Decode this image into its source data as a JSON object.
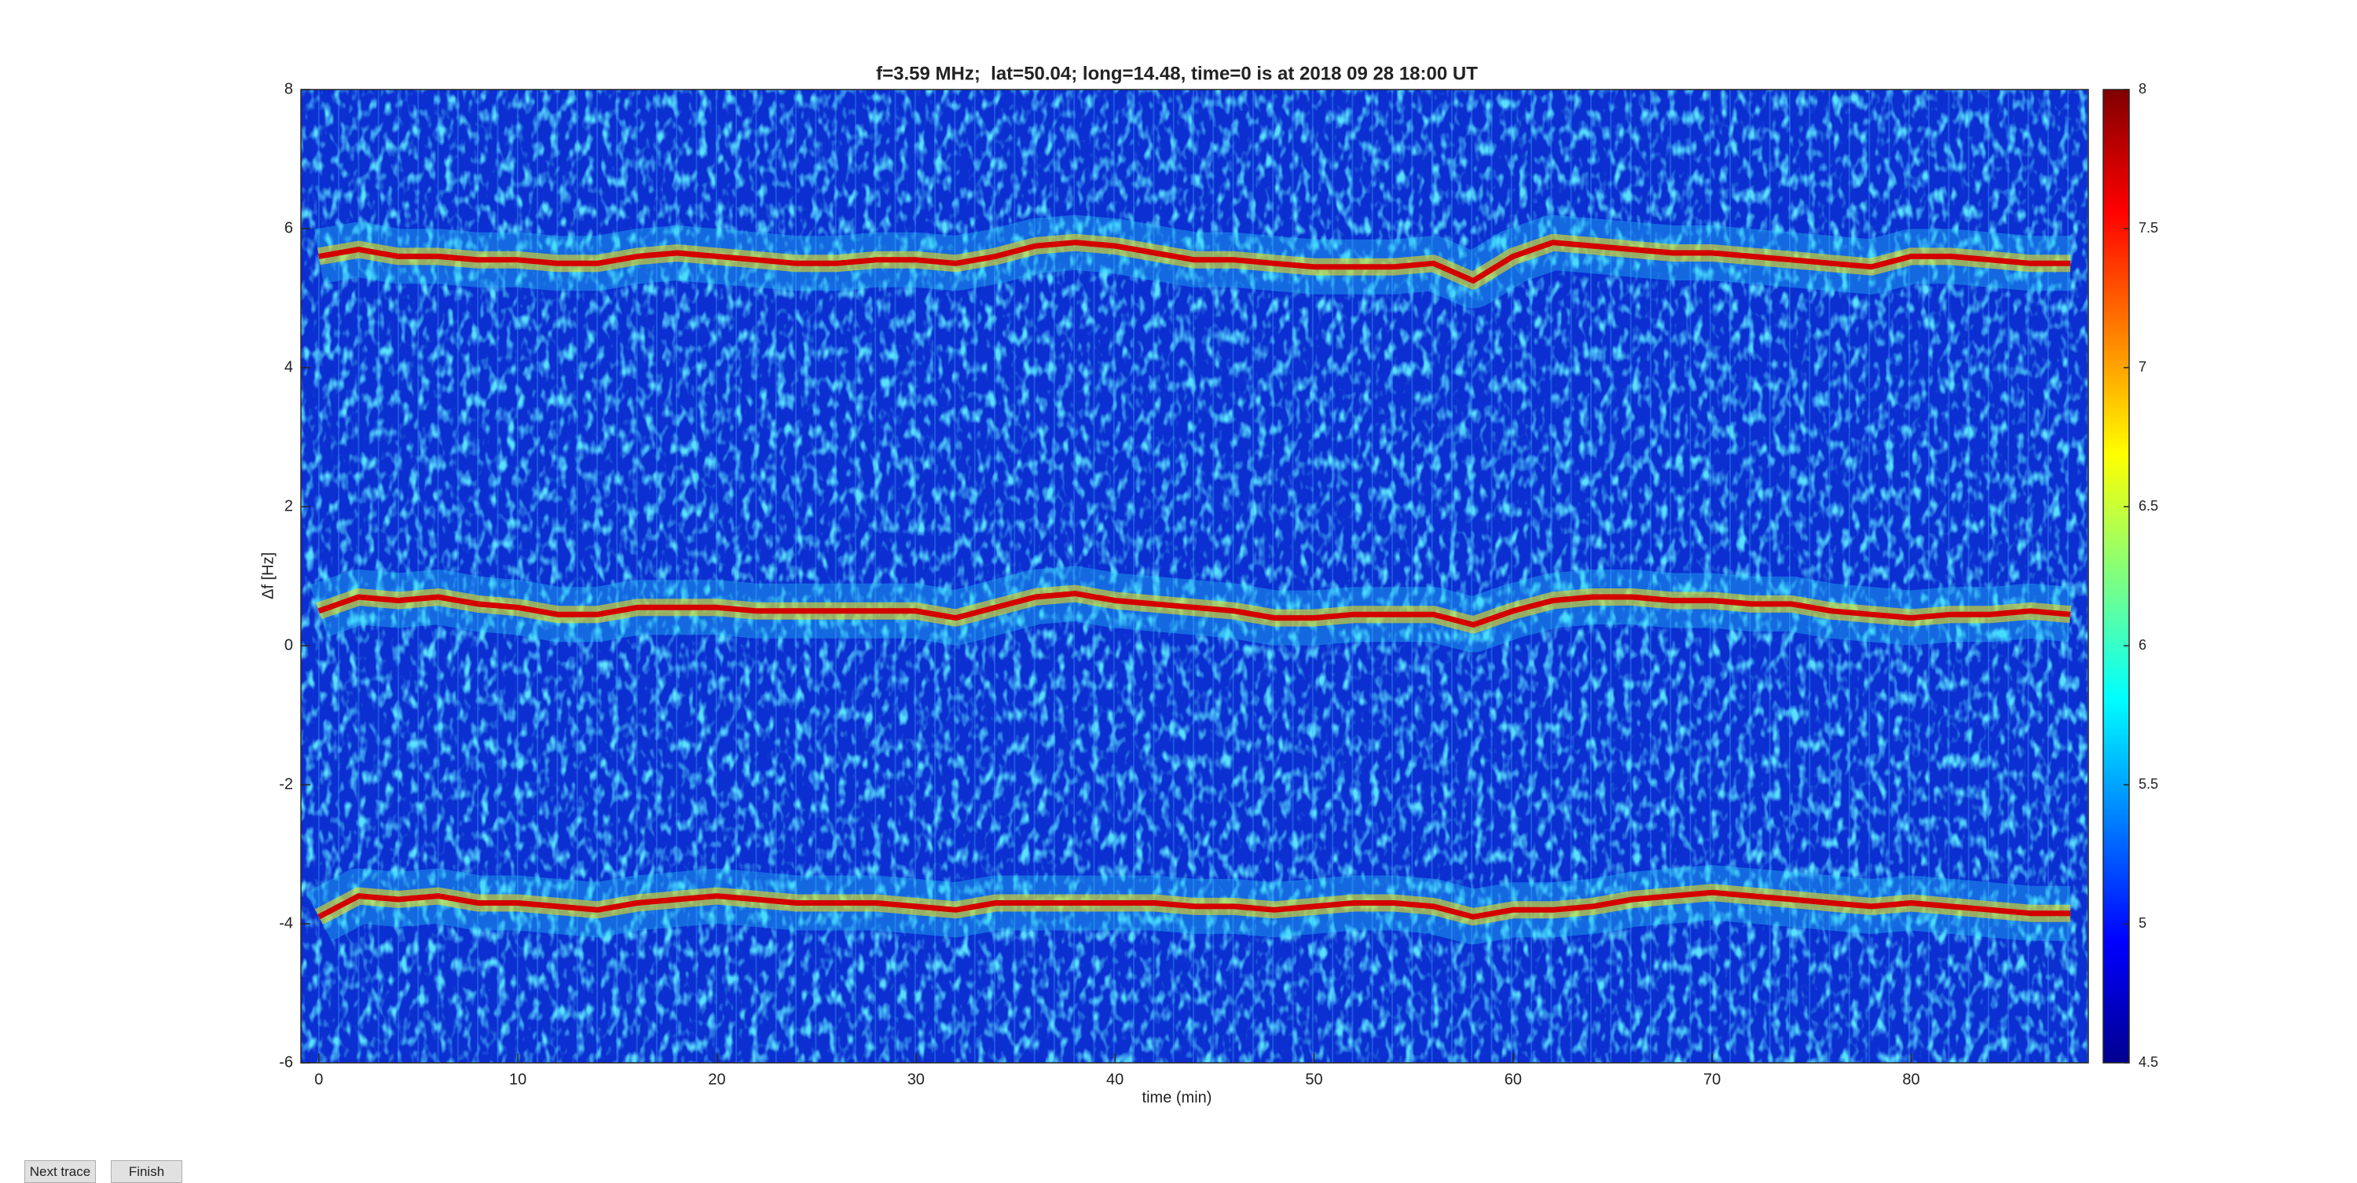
{
  "chart_data": {
    "type": "spectrogram",
    "title": "f=3.59 MHz;  lat=50.04; long=14.48, time=0 is at 2018 09 28 18:00 UT",
    "x_label": "time (min)",
    "y_label": "Δf [Hz]",
    "xlim": [
      -0.9,
      88.9
    ],
    "ylim": [
      -6,
      8
    ],
    "xticks": [
      0,
      10,
      20,
      30,
      40,
      50,
      60,
      70,
      80
    ],
    "yticks": [
      -6,
      -4,
      -2,
      0,
      2,
      4,
      6,
      8
    ],
    "clim": [
      4.5,
      8
    ],
    "cticks": [
      4.5,
      5,
      5.5,
      6,
      6.5,
      7,
      7.5,
      8
    ],
    "background_color": "#0b2fd0",
    "x": [
      0,
      2,
      4,
      6,
      8,
      10,
      12,
      14,
      16,
      18,
      20,
      22,
      24,
      26,
      28,
      30,
      32,
      34,
      36,
      38,
      40,
      42,
      44,
      46,
      48,
      50,
      52,
      54,
      56,
      58,
      60,
      62,
      64,
      66,
      68,
      70,
      72,
      74,
      76,
      78,
      80,
      82,
      84,
      86,
      88
    ],
    "series": [
      {
        "color": "#d40000",
        "values": [
          5.6,
          5.7,
          5.6,
          5.6,
          5.55,
          5.55,
          5.5,
          5.5,
          5.6,
          5.65,
          5.6,
          5.55,
          5.5,
          5.5,
          5.55,
          5.55,
          5.5,
          5.6,
          5.75,
          5.8,
          5.75,
          5.65,
          5.55,
          5.55,
          5.5,
          5.45,
          5.45,
          5.45,
          5.5,
          5.25,
          5.6,
          5.8,
          5.75,
          5.7,
          5.65,
          5.65,
          5.6,
          5.55,
          5.5,
          5.45,
          5.6,
          5.6,
          5.55,
          5.5,
          5.5
        ]
      },
      {
        "color": "#d40000",
        "values": [
          0.5,
          0.7,
          0.65,
          0.7,
          0.6,
          0.55,
          0.45,
          0.45,
          0.55,
          0.55,
          0.55,
          0.5,
          0.5,
          0.5,
          0.5,
          0.5,
          0.4,
          0.55,
          0.7,
          0.75,
          0.65,
          0.6,
          0.55,
          0.5,
          0.4,
          0.4,
          0.45,
          0.45,
          0.45,
          0.3,
          0.5,
          0.65,
          0.7,
          0.7,
          0.65,
          0.65,
          0.6,
          0.6,
          0.5,
          0.45,
          0.4,
          0.45,
          0.45,
          0.5,
          0.45
        ]
      },
      {
        "color": "#d40000",
        "values": [
          -3.9,
          -3.6,
          -3.65,
          -3.6,
          -3.7,
          -3.7,
          -3.75,
          -3.8,
          -3.7,
          -3.65,
          -3.6,
          -3.65,
          -3.7,
          -3.7,
          -3.7,
          -3.75,
          -3.8,
          -3.7,
          -3.7,
          -3.7,
          -3.7,
          -3.7,
          -3.75,
          -3.75,
          -3.8,
          -3.75,
          -3.7,
          -3.7,
          -3.75,
          -3.9,
          -3.8,
          -3.8,
          -3.75,
          -3.65,
          -3.6,
          -3.55,
          -3.6,
          -3.65,
          -3.7,
          -3.75,
          -3.7,
          -3.75,
          -3.8,
          -3.85,
          -3.85
        ]
      }
    ]
  },
  "ui": {
    "buttons": [
      "Next trace",
      "Finish"
    ]
  }
}
